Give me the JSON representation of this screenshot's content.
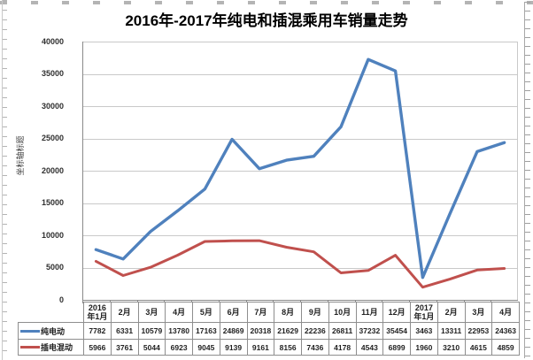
{
  "title": "2016年-2017年纯电和插混乘用车销量走势",
  "y_axis_title": "坐标轴标题",
  "colors": {
    "pure_electric": "#4F81BD",
    "plugin_hybrid": "#C0504D",
    "gridline": "#c9c9c9",
    "axis_line": "#8a8a8a",
    "table_border": "#8e8e8e"
  },
  "chart_data": {
    "type": "line",
    "title": "2016年-2017年纯电和插混乘用车销量走势",
    "xlabel": "",
    "ylabel": "坐标轴标题",
    "ylim": [
      0,
      40000
    ],
    "ytick_step": 5000,
    "grid": true,
    "legend_position": "data-table-left",
    "categories": [
      "2016年1月",
      "2月",
      "3月",
      "4月",
      "5月",
      "6月",
      "7月",
      "8月",
      "9月",
      "10月",
      "11月",
      "12月",
      "2017年1月",
      "2月",
      "3月",
      "4月"
    ],
    "series": [
      {
        "name": "纯电动",
        "color": "#4F81BD",
        "values": [
          7782,
          6331,
          10579,
          13780,
          17163,
          24869,
          20318,
          21629,
          22236,
          26811,
          37232,
          35454,
          3463,
          13311,
          22953,
          24363
        ]
      },
      {
        "name": "插电混动",
        "color": "#C0504D",
        "values": [
          5966,
          3761,
          5044,
          6923,
          9045,
          9139,
          9161,
          8156,
          7436,
          4178,
          4543,
          6899,
          1960,
          3210,
          4615,
          4859
        ]
      }
    ]
  }
}
